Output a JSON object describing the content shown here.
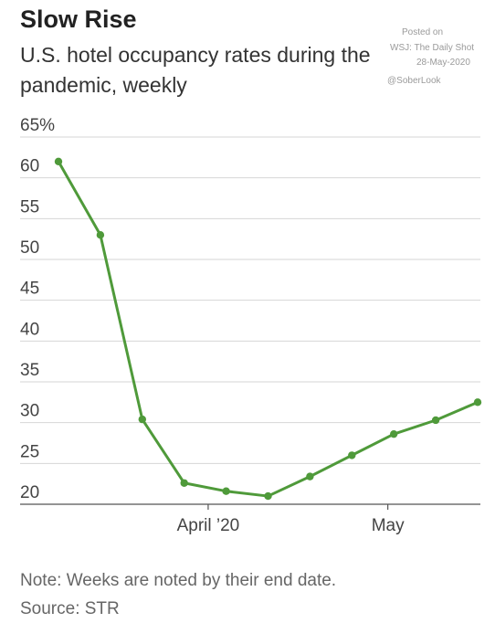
{
  "header": {
    "title": "Slow Rise",
    "subtitle": "U.S. hotel occupancy rates during the pandemic, weekly"
  },
  "watermark": {
    "line1": "Posted on",
    "line2": "WSJ: The Daily Shot",
    "line3": "28-May-2020",
    "line4": "@SoberLook"
  },
  "footer": {
    "note": "Note: Weeks are noted by their end date.",
    "source": "Source: STR"
  },
  "colors": {
    "line": "#4f9a3a",
    "grid": "#d6d6d6",
    "axis": "#555555"
  },
  "chart_data": {
    "type": "line",
    "title": "Slow Rise",
    "subtitle": "U.S. hotel occupancy rates during the pandemic, weekly",
    "xlabel": "",
    "ylabel": "",
    "x": [
      "2020-03-07",
      "2020-03-14",
      "2020-03-21",
      "2020-03-28",
      "2020-04-04",
      "2020-04-11",
      "2020-04-18",
      "2020-04-25",
      "2020-05-02",
      "2020-05-09",
      "2020-05-16"
    ],
    "series": [
      {
        "values": [
          62.0,
          53.0,
          30.4,
          22.6,
          21.6,
          21.0,
          23.4,
          26.0,
          28.6,
          30.3,
          32.5
        ]
      }
    ],
    "ylim": [
      20,
      65
    ],
    "yticks": [
      20,
      25,
      30,
      35,
      40,
      45,
      50,
      55,
      60,
      65
    ],
    "ytick_labels": [
      "20",
      "25",
      "30",
      "35",
      "40",
      "45",
      "50",
      "55",
      "60",
      "65%"
    ],
    "xticks": [
      {
        "label": "April ’20",
        "date": "2020-04-01"
      },
      {
        "label": "May",
        "date": "2020-05-01"
      }
    ],
    "grid": true,
    "markers": true
  }
}
